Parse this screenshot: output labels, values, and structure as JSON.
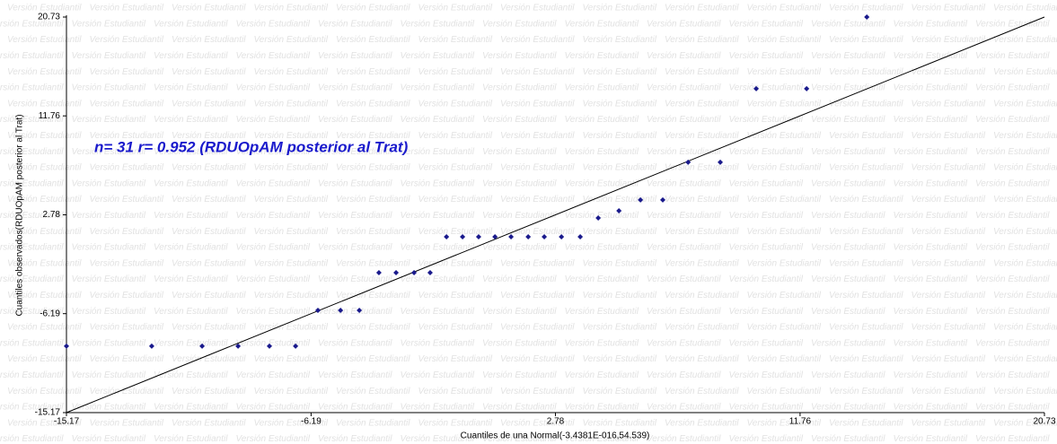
{
  "chart_data": {
    "type": "scatter",
    "watermark": "Versión Estudiantil",
    "annotation": "n= 31 r= 0.952 (RDUOpAM posterior al Trat)",
    "xlabel": "Cuantiles de una Normal(-3.4381E-016,54.539)",
    "ylabel": "Cuantiles observados(RDUOpAM posterior al Trat)",
    "xlim": [
      -15.17,
      20.73
    ],
    "ylim": [
      -15.17,
      20.73
    ],
    "xticks": [
      -15.17,
      -6.19,
      2.78,
      11.76,
      20.73
    ],
    "yticks": [
      -15.17,
      -6.19,
      2.78,
      11.76,
      20.73
    ],
    "color": "#1a1a8c",
    "x": [
      -15.17,
      -12.04,
      -10.19,
      -8.87,
      -7.72,
      -6.76,
      -5.94,
      -5.11,
      -4.42,
      -3.7,
      -3.07,
      -2.41,
      -1.82,
      -1.22,
      -0.63,
      -0.04,
      0.56,
      1.15,
      1.78,
      2.37,
      3.0,
      3.69,
      4.35,
      5.11,
      5.9,
      6.72,
      7.65,
      8.83,
      10.15,
      12.0,
      14.21
    ],
    "values": [
      -9.14,
      -9.14,
      -9.14,
      -9.14,
      -9.14,
      -9.14,
      -5.89,
      -5.89,
      -5.89,
      -2.47,
      -2.47,
      -2.47,
      -2.47,
      0.79,
      0.79,
      0.79,
      0.79,
      0.79,
      0.79,
      0.79,
      0.79,
      0.79,
      2.5,
      3.15,
      4.13,
      4.13,
      7.55,
      7.55,
      14.23,
      14.23,
      20.73
    ],
    "reference_line": {
      "x": [
        -15.17,
        20.73
      ],
      "values": [
        -15.17,
        20.73
      ]
    }
  }
}
